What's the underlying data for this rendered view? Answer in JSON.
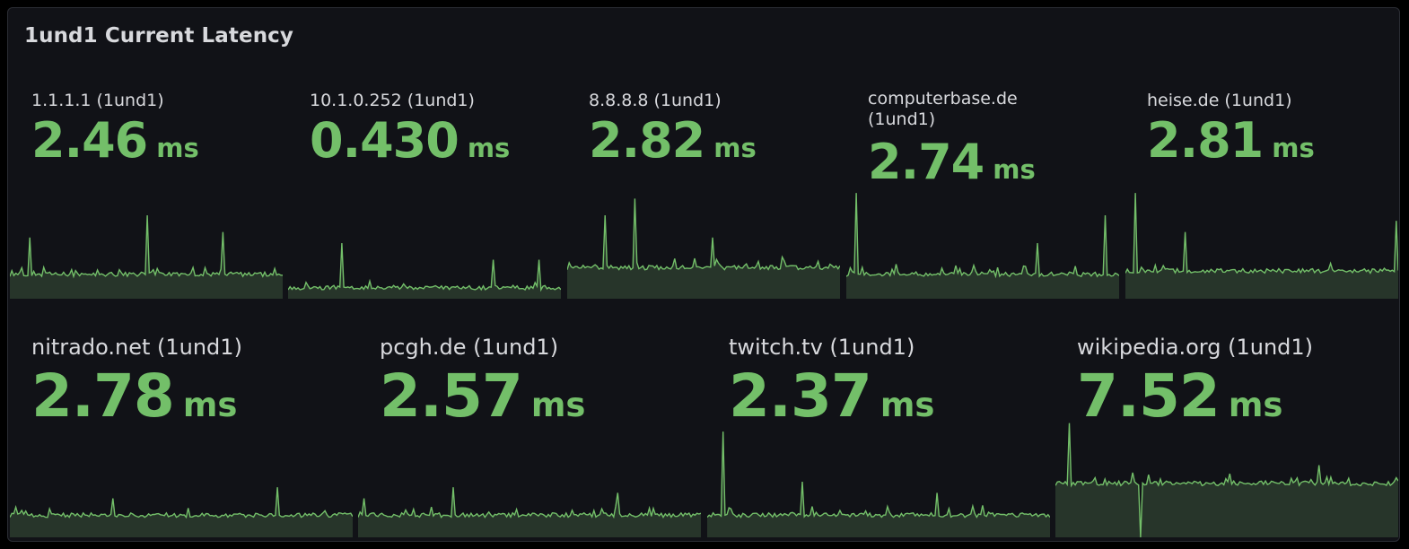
{
  "panel": {
    "title": "1und1 Current Latency"
  },
  "colors": {
    "value": "#73bf69",
    "sparkline_stroke": "#73bf69",
    "sparkline_fill": "#27352a",
    "panel_bg": "#111217",
    "text": "#d8d9dd"
  },
  "stats": [
    {
      "title": "1.1.1.1 (1und1)",
      "value": "2.46",
      "unit": "ms",
      "spark": {
        "base": 0.22,
        "spikes": [
          [
            0.07,
            0.55
          ],
          [
            0.5,
            0.75
          ],
          [
            0.78,
            0.6
          ]
        ]
      }
    },
    {
      "title": "10.1.0.252 (1und1)",
      "value": "0.430",
      "unit": "ms",
      "spark": {
        "base": 0.1,
        "spikes": [
          [
            0.2,
            0.5
          ],
          [
            0.75,
            0.35
          ],
          [
            0.92,
            0.35
          ]
        ]
      }
    },
    {
      "title": "8.8.8.8 (1und1)",
      "value": "2.82",
      "unit": "ms",
      "spark": {
        "base": 0.28,
        "spikes": [
          [
            0.14,
            0.75
          ],
          [
            0.25,
            0.9
          ],
          [
            0.53,
            0.55
          ]
        ]
      }
    },
    {
      "title": "computerbase.de (1und1)",
      "value": "2.74",
      "unit": "ms",
      "spark": {
        "base": 0.22,
        "spikes": [
          [
            0.04,
            0.95
          ],
          [
            0.95,
            0.75
          ],
          [
            0.7,
            0.5
          ]
        ]
      }
    },
    {
      "title": "heise.de (1und1)",
      "value": "2.81",
      "unit": "ms",
      "spark": {
        "base": 0.25,
        "spikes": [
          [
            0.04,
            0.95
          ],
          [
            0.22,
            0.6
          ],
          [
            0.99,
            0.7
          ]
        ]
      }
    },
    {
      "title": "nitrado.net (1und1)",
      "value": "2.78",
      "unit": "ms",
      "spark": {
        "base": 0.2,
        "spikes": [
          [
            0.78,
            0.45
          ],
          [
            0.3,
            0.35
          ]
        ]
      }
    },
    {
      "title": "pcgh.de (1und1)",
      "value": "2.57",
      "unit": "ms",
      "spark": {
        "base": 0.2,
        "spikes": [
          [
            0.28,
            0.45
          ],
          [
            0.76,
            0.4
          ],
          [
            0.02,
            0.35
          ]
        ]
      }
    },
    {
      "title": "twitch.tv (1und1)",
      "value": "2.37",
      "unit": "ms",
      "spark": {
        "base": 0.2,
        "spikes": [
          [
            0.045,
            0.95
          ],
          [
            0.28,
            0.5
          ],
          [
            0.67,
            0.4
          ]
        ]
      }
    },
    {
      "title": "wikipedia.org (1und1)",
      "value": "7.52",
      "unit": "ms",
      "spark": {
        "base": 0.45,
        "spikes": [
          [
            0.04,
            0.95
          ],
          [
            0.77,
            0.6
          ]
        ],
        "dips": [
          [
            0.25,
            0.0
          ]
        ]
      }
    }
  ]
}
